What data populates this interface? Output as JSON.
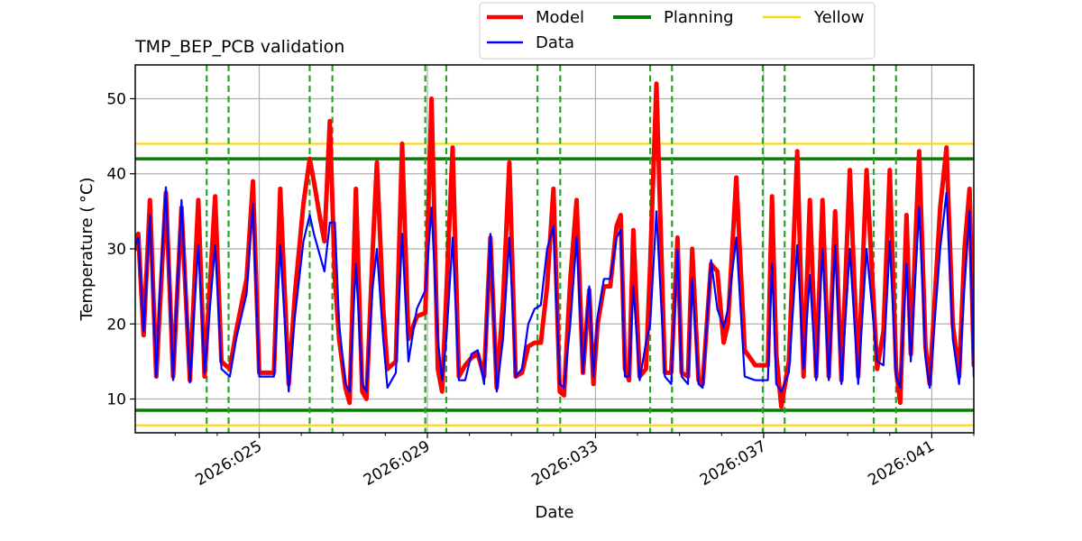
{
  "chart_data": {
    "type": "line",
    "title": "TMP_BEP_PCB validation",
    "xlabel": "Date",
    "ylabel": "Temperature ($^\\circ$C)",
    "ylabel_display": "Temperature ( °C)",
    "xlim": [
      22.05,
      42.0
    ],
    "ylim": [
      5.5,
      54.5
    ],
    "yticks": [
      10,
      20,
      30,
      40,
      50
    ],
    "xticks": [
      {
        "value": 25,
        "label": "2026:025"
      },
      {
        "value": 29,
        "label": "2026:029"
      },
      {
        "value": 33,
        "label": "2026:033"
      },
      {
        "value": 37,
        "label": "2026:037"
      },
      {
        "value": 41,
        "label": "2026:041"
      }
    ],
    "grid": true,
    "legend": {
      "placement": "top-right, above plot",
      "entries": [
        {
          "name": "Model",
          "color": "#ff0000"
        },
        {
          "name": "Data",
          "color": "#0000ff"
        },
        {
          "name": "Planning",
          "color": "#008000"
        },
        {
          "name": "Yellow",
          "color": "#ffd700"
        }
      ]
    },
    "limits": [
      {
        "name": "Planning",
        "color": "#008000",
        "values": [
          8.5,
          42.0
        ]
      },
      {
        "name": "Yellow",
        "color": "#ffd700",
        "values": [
          6.5,
          44.0
        ]
      }
    ],
    "event_lines": {
      "color": "#2ca02c",
      "style": "dashed",
      "x": [
        23.75,
        24.27,
        26.2,
        26.74,
        28.95,
        29.45,
        31.62,
        32.16,
        34.3,
        34.82,
        36.98,
        37.5,
        39.62,
        40.15
      ]
    },
    "series": [
      {
        "name": "Model",
        "color": "#ff0000",
        "points": [
          [
            22.05,
            30.0
          ],
          [
            22.12,
            32.0
          ],
          [
            22.25,
            18.5
          ],
          [
            22.4,
            36.5
          ],
          [
            22.55,
            13.0
          ],
          [
            22.78,
            37.5
          ],
          [
            22.95,
            13.0
          ],
          [
            23.15,
            35.5
          ],
          [
            23.35,
            12.5
          ],
          [
            23.55,
            36.5
          ],
          [
            23.7,
            13.0
          ],
          [
            23.95,
            37.0
          ],
          [
            24.1,
            15.0
          ],
          [
            24.3,
            14.0
          ],
          [
            24.45,
            19.0
          ],
          [
            24.7,
            26.0
          ],
          [
            24.85,
            39.0
          ],
          [
            25.0,
            13.5
          ],
          [
            25.35,
            13.5
          ],
          [
            25.5,
            38.0
          ],
          [
            25.7,
            12.0
          ],
          [
            25.85,
            24.0
          ],
          [
            26.05,
            36.0
          ],
          [
            26.2,
            42.0
          ],
          [
            26.3,
            39.0
          ],
          [
            26.45,
            34.0
          ],
          [
            26.55,
            31.0
          ],
          [
            26.68,
            47.0
          ],
          [
            26.8,
            26.0
          ],
          [
            26.9,
            18.0
          ],
          [
            27.05,
            11.5
          ],
          [
            27.15,
            9.5
          ],
          [
            27.3,
            38.0
          ],
          [
            27.45,
            11.0
          ],
          [
            27.55,
            10.0
          ],
          [
            27.7,
            30.0
          ],
          [
            27.8,
            41.5
          ],
          [
            27.95,
            22.0
          ],
          [
            28.05,
            14.0
          ],
          [
            28.25,
            15.0
          ],
          [
            28.4,
            44.0
          ],
          [
            28.55,
            18.0
          ],
          [
            28.75,
            21.0
          ],
          [
            28.95,
            21.5
          ],
          [
            29.1,
            50.0
          ],
          [
            29.25,
            14.0
          ],
          [
            29.35,
            11.0
          ],
          [
            29.45,
            24.0
          ],
          [
            29.6,
            43.5
          ],
          [
            29.75,
            13.0
          ],
          [
            29.9,
            14.5
          ],
          [
            30.05,
            15.5
          ],
          [
            30.2,
            16.0
          ],
          [
            30.35,
            13.0
          ],
          [
            30.5,
            31.5
          ],
          [
            30.65,
            11.5
          ],
          [
            30.8,
            23.0
          ],
          [
            30.95,
            41.5
          ],
          [
            31.1,
            13.0
          ],
          [
            31.25,
            13.5
          ],
          [
            31.4,
            17.0
          ],
          [
            31.55,
            17.5
          ],
          [
            31.7,
            17.5
          ],
          [
            31.85,
            25.0
          ],
          [
            32.0,
            38.0
          ],
          [
            32.15,
            11.0
          ],
          [
            32.25,
            10.5
          ],
          [
            32.4,
            26.0
          ],
          [
            32.55,
            36.5
          ],
          [
            32.7,
            13.5
          ],
          [
            32.85,
            24.5
          ],
          [
            32.95,
            12.0
          ],
          [
            33.05,
            20.0
          ],
          [
            33.2,
            25.0
          ],
          [
            33.35,
            25.0
          ],
          [
            33.5,
            33.0
          ],
          [
            33.6,
            34.5
          ],
          [
            33.7,
            14.0
          ],
          [
            33.8,
            12.5
          ],
          [
            33.9,
            32.5
          ],
          [
            34.05,
            13.0
          ],
          [
            34.2,
            14.0
          ],
          [
            34.3,
            28.0
          ],
          [
            34.45,
            52.0
          ],
          [
            34.65,
            13.5
          ],
          [
            34.8,
            13.5
          ],
          [
            34.95,
            31.5
          ],
          [
            35.05,
            13.5
          ],
          [
            35.2,
            13.0
          ],
          [
            35.3,
            30.0
          ],
          [
            35.45,
            12.5
          ],
          [
            35.55,
            12.0
          ],
          [
            35.75,
            28.0
          ],
          [
            35.9,
            27.0
          ],
          [
            36.05,
            17.5
          ],
          [
            36.15,
            20.0
          ],
          [
            36.35,
            39.5
          ],
          [
            36.55,
            16.5
          ],
          [
            36.8,
            14.5
          ],
          [
            37.1,
            14.5
          ],
          [
            37.2,
            37.0
          ],
          [
            37.3,
            16.0
          ],
          [
            37.42,
            9.0
          ],
          [
            37.6,
            15.0
          ],
          [
            37.8,
            43.0
          ],
          [
            37.95,
            13.0
          ],
          [
            38.1,
            36.5
          ],
          [
            38.25,
            13.0
          ],
          [
            38.4,
            36.5
          ],
          [
            38.55,
            13.0
          ],
          [
            38.7,
            35.0
          ],
          [
            38.85,
            12.5
          ],
          [
            39.05,
            40.5
          ],
          [
            39.25,
            13.0
          ],
          [
            39.45,
            40.5
          ],
          [
            39.7,
            14.0
          ],
          [
            39.85,
            19.0
          ],
          [
            40.0,
            40.5
          ],
          [
            40.15,
            14.0
          ],
          [
            40.25,
            9.5
          ],
          [
            40.4,
            34.5
          ],
          [
            40.5,
            16.0
          ],
          [
            40.7,
            43.0
          ],
          [
            40.85,
            17.0
          ],
          [
            40.95,
            12.0
          ],
          [
            41.2,
            35.5
          ],
          [
            41.35,
            43.5
          ],
          [
            41.5,
            20.0
          ],
          [
            41.65,
            13.0
          ],
          [
            41.78,
            30.0
          ],
          [
            41.9,
            38.0
          ],
          [
            42.0,
            14.5
          ]
        ]
      },
      {
        "name": "Data",
        "color": "#0000ff",
        "points": [
          [
            22.05,
            30.5
          ],
          [
            22.12,
            31.5
          ],
          [
            22.25,
            19.0
          ],
          [
            22.4,
            34.5
          ],
          [
            22.55,
            13.0
          ],
          [
            22.65,
            26.0
          ],
          [
            22.78,
            38.2
          ],
          [
            22.95,
            12.5
          ],
          [
            23.15,
            36.5
          ],
          [
            23.35,
            12.2
          ],
          [
            23.55,
            30.5
          ],
          [
            23.7,
            13.5
          ],
          [
            23.95,
            30.5
          ],
          [
            24.1,
            14.0
          ],
          [
            24.3,
            13.0
          ],
          [
            24.45,
            18.0
          ],
          [
            24.7,
            24.0
          ],
          [
            24.85,
            36.0
          ],
          [
            25.0,
            13.0
          ],
          [
            25.35,
            13.0
          ],
          [
            25.5,
            30.5
          ],
          [
            25.7,
            11.0
          ],
          [
            25.85,
            21.0
          ],
          [
            26.05,
            31.0
          ],
          [
            26.2,
            34.5
          ],
          [
            26.3,
            32.0
          ],
          [
            26.45,
            29.0
          ],
          [
            26.55,
            27.0
          ],
          [
            26.68,
            33.5
          ],
          [
            26.8,
            33.5
          ],
          [
            26.9,
            20.0
          ],
          [
            27.05,
            12.0
          ],
          [
            27.15,
            11.0
          ],
          [
            27.3,
            28.0
          ],
          [
            27.45,
            12.0
          ],
          [
            27.55,
            11.0
          ],
          [
            27.7,
            25.0
          ],
          [
            27.8,
            30.0
          ],
          [
            27.95,
            18.0
          ],
          [
            28.05,
            11.5
          ],
          [
            28.25,
            13.5
          ],
          [
            28.4,
            32.0
          ],
          [
            28.55,
            15.0
          ],
          [
            28.75,
            22.0
          ],
          [
            28.95,
            24.5
          ],
          [
            29.1,
            35.5
          ],
          [
            29.25,
            18.0
          ],
          [
            29.35,
            12.5
          ],
          [
            29.45,
            18.0
          ],
          [
            29.6,
            31.5
          ],
          [
            29.75,
            12.5
          ],
          [
            29.9,
            12.5
          ],
          [
            30.05,
            16.0
          ],
          [
            30.2,
            16.5
          ],
          [
            30.35,
            12.0
          ],
          [
            30.5,
            32.0
          ],
          [
            30.65,
            11.0
          ],
          [
            30.8,
            18.0
          ],
          [
            30.95,
            31.5
          ],
          [
            31.1,
            13.0
          ],
          [
            31.25,
            14.0
          ],
          [
            31.4,
            20.0
          ],
          [
            31.55,
            22.0
          ],
          [
            31.7,
            22.5
          ],
          [
            31.85,
            30.0
          ],
          [
            32.0,
            33.0
          ],
          [
            32.15,
            12.0
          ],
          [
            32.25,
            11.5
          ],
          [
            32.4,
            20.0
          ],
          [
            32.55,
            31.5
          ],
          [
            32.7,
            13.5
          ],
          [
            32.85,
            25.0
          ],
          [
            32.95,
            13.0
          ],
          [
            33.05,
            21.0
          ],
          [
            33.2,
            26.0
          ],
          [
            33.35,
            26.0
          ],
          [
            33.5,
            31.5
          ],
          [
            33.6,
            32.5
          ],
          [
            33.7,
            13.0
          ],
          [
            33.8,
            13.0
          ],
          [
            33.9,
            25.0
          ],
          [
            34.05,
            12.5
          ],
          [
            34.2,
            17.5
          ],
          [
            34.3,
            20.0
          ],
          [
            34.45,
            35.0
          ],
          [
            34.65,
            13.0
          ],
          [
            34.8,
            12.0
          ],
          [
            34.95,
            30.0
          ],
          [
            35.05,
            13.0
          ],
          [
            35.2,
            12.0
          ],
          [
            35.3,
            26.0
          ],
          [
            35.45,
            12.0
          ],
          [
            35.55,
            11.5
          ],
          [
            35.75,
            28.5
          ],
          [
            35.9,
            22.0
          ],
          [
            36.05,
            19.5
          ],
          [
            36.15,
            22.0
          ],
          [
            36.35,
            31.5
          ],
          [
            36.55,
            13.0
          ],
          [
            36.8,
            12.5
          ],
          [
            37.1,
            12.5
          ],
          [
            37.2,
            28.0
          ],
          [
            37.3,
            12.0
          ],
          [
            37.42,
            11.0
          ],
          [
            37.6,
            13.5
          ],
          [
            37.8,
            30.5
          ],
          [
            37.95,
            14.0
          ],
          [
            38.1,
            26.5
          ],
          [
            38.25,
            12.5
          ],
          [
            38.4,
            30.0
          ],
          [
            38.55,
            12.5
          ],
          [
            38.7,
            30.5
          ],
          [
            38.85,
            12.0
          ],
          [
            39.05,
            30.0
          ],
          [
            39.25,
            12.0
          ],
          [
            39.45,
            30.0
          ],
          [
            39.7,
            15.0
          ],
          [
            39.85,
            14.5
          ],
          [
            40.0,
            31.0
          ],
          [
            40.15,
            13.0
          ],
          [
            40.25,
            11.5
          ],
          [
            40.4,
            28.0
          ],
          [
            40.5,
            15.0
          ],
          [
            40.7,
            35.5
          ],
          [
            40.85,
            15.5
          ],
          [
            40.95,
            11.5
          ],
          [
            41.2,
            30.0
          ],
          [
            41.35,
            37.5
          ],
          [
            41.5,
            18.0
          ],
          [
            41.65,
            12.0
          ],
          [
            41.78,
            25.0
          ],
          [
            41.9,
            35.0
          ],
          [
            42.0,
            13.0
          ]
        ]
      }
    ]
  }
}
